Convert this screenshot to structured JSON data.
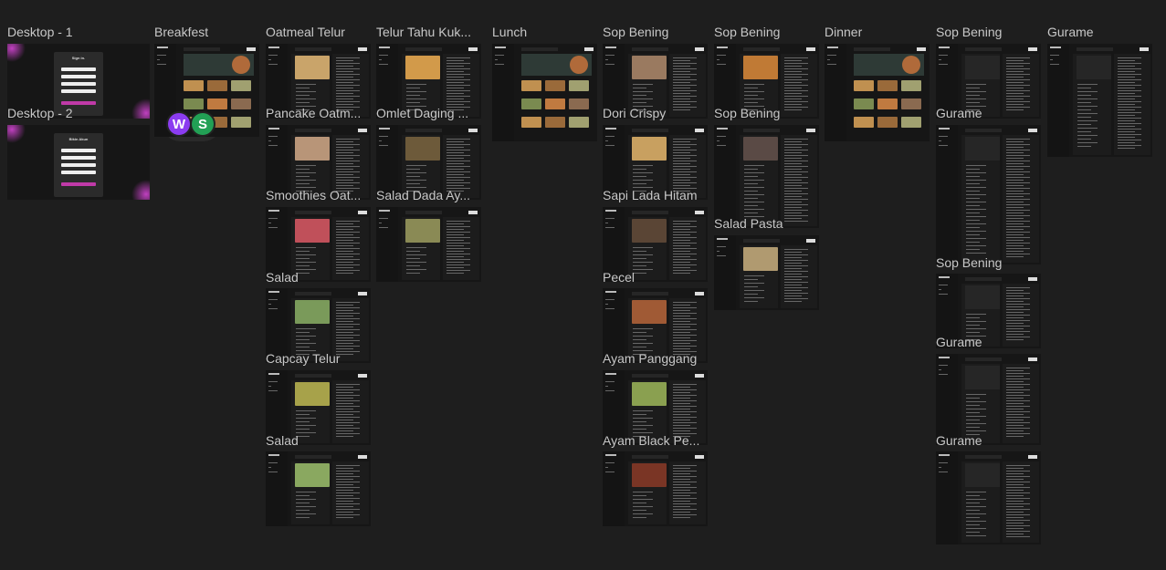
{
  "frames": [
    {
      "label": "Desktop - 1",
      "title": "Sign in."
    },
    {
      "label": "Desktop - 2",
      "title": "Bikin Akun"
    },
    {
      "label": "Breakfest"
    },
    {
      "label": "Oatmeal Telur"
    },
    {
      "label": "Pancake Oatm..."
    },
    {
      "label": "Smoothies Oat..."
    },
    {
      "label": "Salad"
    },
    {
      "label": "Capcay Telur"
    },
    {
      "label": "Salad"
    },
    {
      "label": "Telur Tahu Kuk..."
    },
    {
      "label": "Omlet Daging ..."
    },
    {
      "label": "Salad Dada Ay..."
    },
    {
      "label": "Lunch"
    },
    {
      "label": "Sop Bening"
    },
    {
      "label": "Dori Crispy"
    },
    {
      "label": "Sapi Lada Hitam"
    },
    {
      "label": "Pecel"
    },
    {
      "label": "Ayam Panggang"
    },
    {
      "label": "Ayam Black Pe..."
    },
    {
      "label": "Sop Bening"
    },
    {
      "label": "Sop Bening"
    },
    {
      "label": "Salad Pasta"
    },
    {
      "label": "Dinner"
    },
    {
      "label": "Sop Bening"
    },
    {
      "label": "Gurame"
    },
    {
      "label": "Sop Bening"
    },
    {
      "label": "Gurame"
    },
    {
      "label": "Gurame"
    },
    {
      "label": "Gurame"
    }
  ],
  "avatars": [
    "W",
    "S"
  ]
}
